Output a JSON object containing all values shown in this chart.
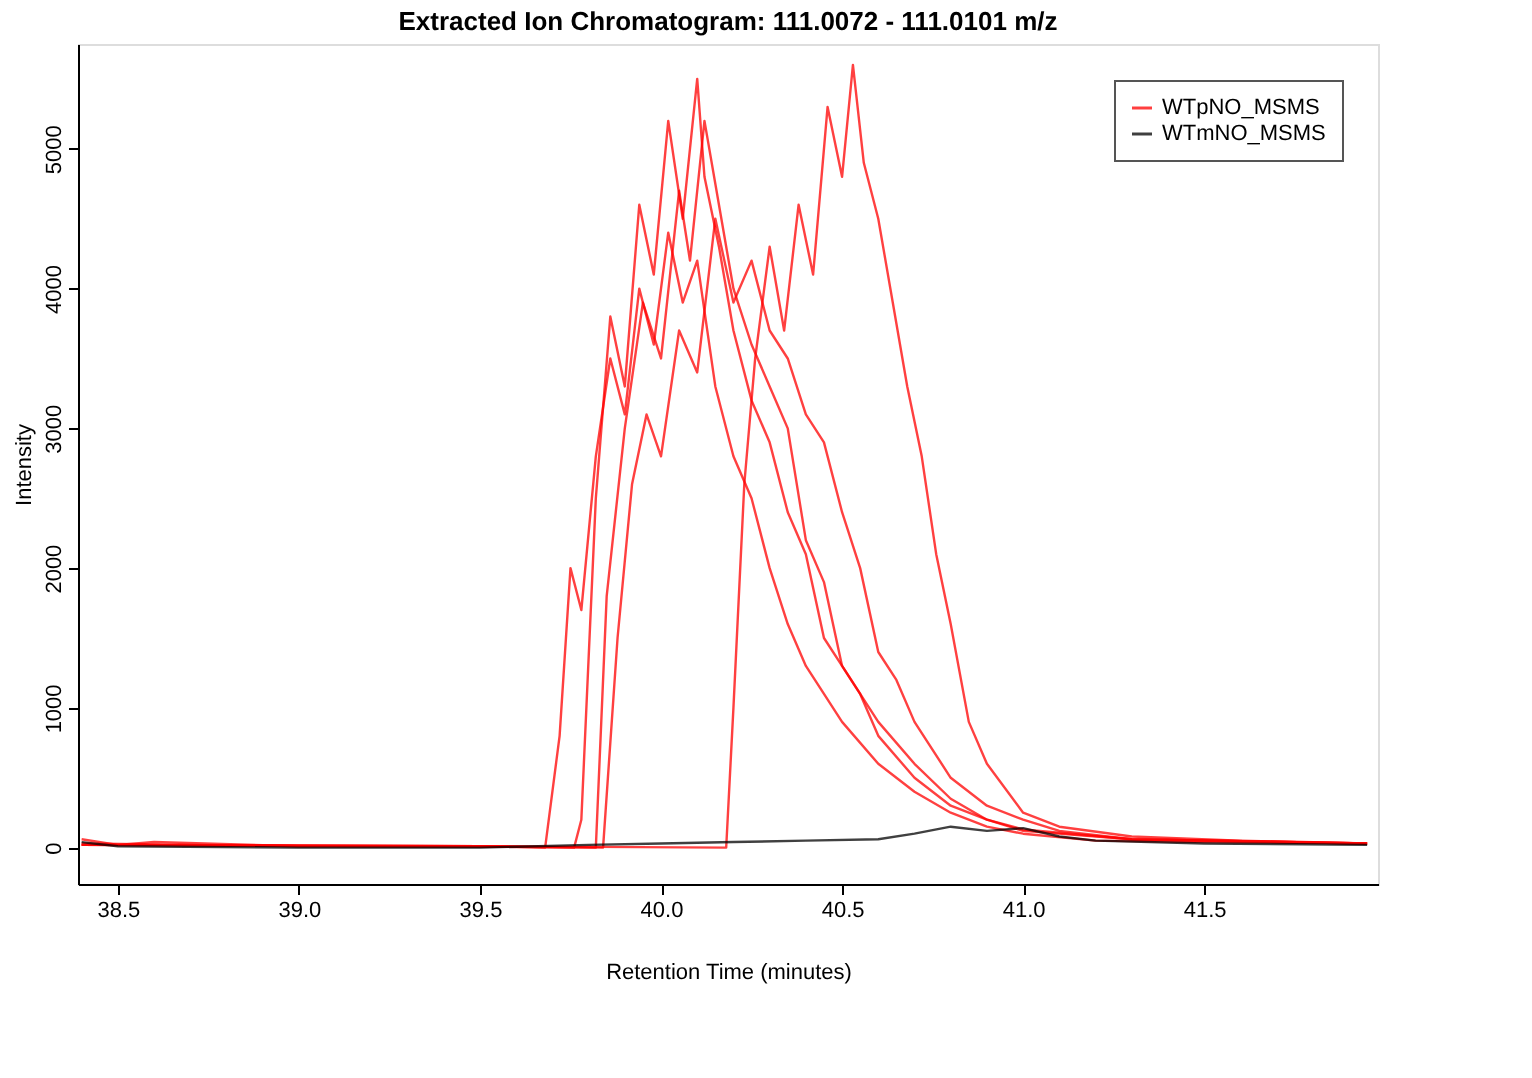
{
  "chart_data": {
    "type": "line",
    "title": "Extracted Ion Chromatogram: 111.0072 - 111.0101 m/z",
    "xlabel": "Retention Time (minutes)",
    "ylabel": "Intensity",
    "xlim": [
      38.39,
      41.98
    ],
    "xticks": [
      38.5,
      {
        "value": 39,
        "label": "39.0"
      },
      39.5,
      {
        "value": 40,
        "label": "40.0"
      },
      40.5,
      {
        "value": 41,
        "label": "41.0"
      },
      41.5
    ],
    "ylim": [
      -260,
      5750
    ],
    "yticks": [
      0,
      1000,
      2000,
      3000,
      4000,
      5000
    ],
    "grid": false,
    "legend": "top right",
    "marker": "none",
    "line_style": "solid",
    "series": [
      {
        "name": "WTpNO_MSMS",
        "color": "#ff0000",
        "x": [
          38.4,
          38.5,
          38.6,
          39.0,
          39.5,
          39.68,
          39.72,
          39.75,
          39.78,
          39.82,
          39.86,
          39.9,
          39.94,
          39.98,
          40.02,
          40.06,
          40.1,
          40.15,
          40.2,
          40.25,
          40.3,
          40.35,
          40.4,
          40.5,
          40.6,
          40.7,
          40.8,
          40.9,
          41.0,
          41.2,
          41.5,
          41.95
        ],
        "values": [
          60,
          20,
          40,
          10,
          10,
          0,
          800,
          2000,
          1700,
          2800,
          3500,
          3100,
          4000,
          3600,
          4400,
          3900,
          4200,
          3300,
          2800,
          2500,
          2000,
          1600,
          1300,
          900,
          600,
          400,
          250,
          150,
          100,
          50,
          40,
          30
        ]
      },
      {
        "color": "#ff0000",
        "x": [
          38.4,
          39.0,
          39.5,
          39.76,
          39.78,
          39.82,
          39.86,
          39.9,
          39.94,
          39.98,
          40.02,
          40.06,
          40.1,
          40.12,
          40.16,
          40.2,
          40.25,
          40.3,
          40.35,
          40.4,
          40.45,
          40.5,
          40.6,
          40.7,
          40.8,
          40.9,
          41.0,
          41.3,
          41.95
        ],
        "values": [
          30,
          10,
          10,
          0,
          200,
          2500,
          3800,
          3300,
          4600,
          4100,
          5200,
          4500,
          5500,
          4800,
          4300,
          3700,
          3200,
          2900,
          2400,
          2100,
          1500,
          1300,
          900,
          600,
          350,
          200,
          120,
          60,
          30
        ]
      },
      {
        "color": "#ff0000",
        "x": [
          38.4,
          39.5,
          39.82,
          39.85,
          39.9,
          39.95,
          40.0,
          40.05,
          40.08,
          40.12,
          40.16,
          40.2,
          40.25,
          40.3,
          40.35,
          40.4,
          40.45,
          40.5,
          40.55,
          40.6,
          40.7,
          40.8,
          40.9,
          41.0,
          41.3,
          41.95
        ],
        "values": [
          20,
          10,
          0,
          1800,
          3000,
          3900,
          3500,
          4700,
          4200,
          5200,
          4600,
          4000,
          3600,
          3300,
          3000,
          2200,
          1900,
          1300,
          1100,
          800,
          500,
          300,
          200,
          130,
          60,
          30
        ]
      },
      {
        "color": "#ff0000",
        "x": [
          38.4,
          39.5,
          39.84,
          39.88,
          39.92,
          39.96,
          40.0,
          40.05,
          40.1,
          40.15,
          40.2,
          40.25,
          40.3,
          40.35,
          40.4,
          40.45,
          40.5,
          40.55,
          40.6,
          40.65,
          40.7,
          40.8,
          40.9,
          41.0,
          41.1,
          41.3,
          41.95
        ],
        "values": [
          20,
          10,
          0,
          1500,
          2600,
          3100,
          2800,
          3700,
          3400,
          4500,
          3900,
          4200,
          3700,
          3500,
          3100,
          2900,
          2400,
          2000,
          1400,
          1200,
          900,
          500,
          300,
          200,
          120,
          60,
          30
        ]
      },
      {
        "color": "#ff0000",
        "x": [
          38.4,
          39.5,
          40.18,
          40.2,
          40.23,
          40.26,
          40.3,
          40.34,
          40.38,
          40.42,
          40.46,
          40.5,
          40.53,
          40.56,
          40.6,
          40.64,
          40.68,
          40.72,
          40.76,
          40.8,
          40.85,
          40.9,
          41.0,
          41.1,
          41.3,
          41.6,
          41.95
        ],
        "values": [
          20,
          10,
          0,
          1000,
          2600,
          3500,
          4300,
          3700,
          4600,
          4100,
          5300,
          4800,
          5600,
          4900,
          4500,
          3900,
          3300,
          2800,
          2100,
          1600,
          900,
          600,
          250,
          150,
          80,
          50,
          30
        ]
      },
      {
        "name": "WTmNO_MSMS",
        "color": "#000000",
        "x": [
          38.4,
          38.5,
          39.0,
          39.5,
          39.8,
          40.0,
          40.2,
          40.4,
          40.6,
          40.7,
          40.8,
          40.9,
          41.0,
          41.1,
          41.2,
          41.5,
          41.95
        ],
        "values": [
          40,
          10,
          0,
          0,
          20,
          30,
          40,
          50,
          60,
          100,
          150,
          120,
          140,
          80,
          50,
          30,
          20
        ]
      }
    ]
  }
}
